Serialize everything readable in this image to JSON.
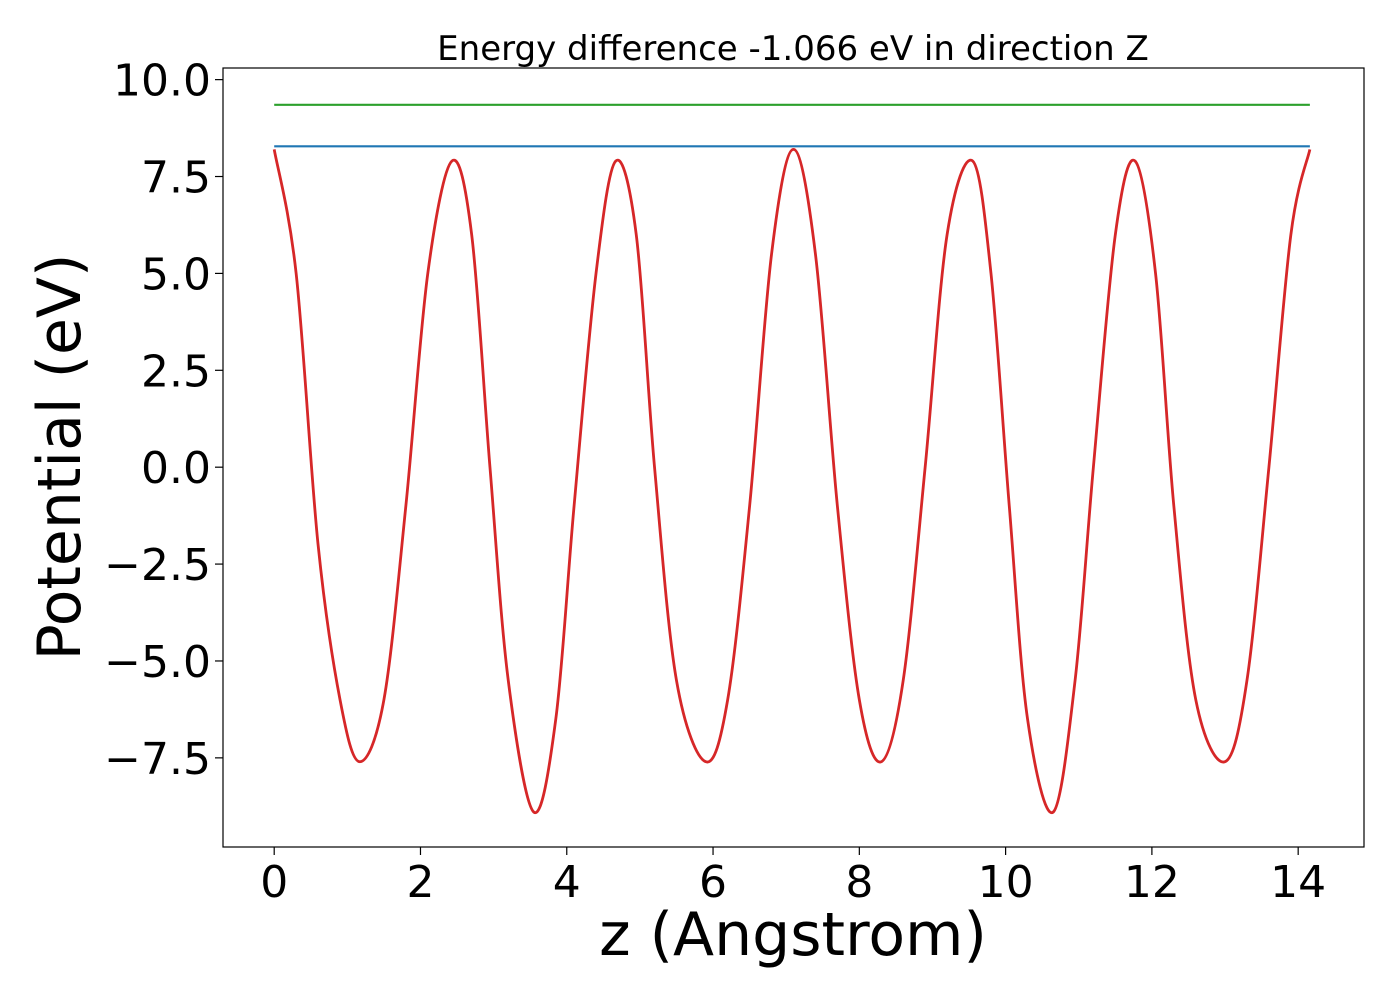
{
  "chart_data": {
    "type": "line",
    "title": "Energy difference -1.066 eV in direction Z",
    "xlabel": "z (Angstrom)",
    "ylabel": "Potential (eV)",
    "xlim": [
      -0.7,
      14.9
    ],
    "ylim": [
      -9.8,
      10.3
    ],
    "xticks": [
      0,
      2,
      4,
      6,
      8,
      10,
      12,
      14
    ],
    "xtick_labels": [
      "0",
      "2",
      "4",
      "6",
      "8",
      "10",
      "12",
      "14"
    ],
    "yticks": [
      10.0,
      7.5,
      5.0,
      2.5,
      0.0,
      -2.5,
      -5.0,
      -7.5
    ],
    "ytick_labels": [
      "10.0",
      "7.5",
      "5.0",
      "2.5",
      "0.0",
      "−2.5",
      "−5.0",
      "−7.5"
    ],
    "grid": false,
    "legend": "none",
    "series": [
      {
        "color": "#d62728",
        "x": [
          0.0,
          0.3,
          0.6,
          0.9,
          1.17,
          1.5,
          1.8,
          2.1,
          2.43,
          2.7,
          2.95,
          3.2,
          3.55,
          3.85,
          4.1,
          4.4,
          4.67,
          4.95,
          5.2,
          5.5,
          5.9,
          6.2,
          6.5,
          6.8,
          7.1,
          7.4,
          7.7,
          8.0,
          8.3,
          8.6,
          8.9,
          9.2,
          9.55,
          9.8,
          10.05,
          10.3,
          10.65,
          10.95,
          11.2,
          11.5,
          11.77,
          12.05,
          12.3,
          12.6,
          13.0,
          13.3,
          13.6,
          13.9,
          14.16
        ],
        "y": [
          8.2,
          5.0,
          -2.0,
          -6.0,
          -7.6,
          -6.0,
          -1.0,
          5.0,
          7.9,
          6.0,
          0.0,
          -5.5,
          -8.9,
          -6.5,
          -1.0,
          5.0,
          7.9,
          6.0,
          0.0,
          -5.5,
          -7.6,
          -6.0,
          -1.0,
          5.5,
          8.2,
          5.5,
          -1.0,
          -6.0,
          -7.6,
          -5.5,
          0.0,
          6.0,
          7.9,
          5.0,
          -1.0,
          -6.5,
          -8.9,
          -5.5,
          0.0,
          6.0,
          7.9,
          5.0,
          -1.0,
          -6.0,
          -7.6,
          -5.5,
          0.0,
          6.0,
          8.2
        ]
      },
      {
        "color": "#1f77b4",
        "x": [
          0.0,
          14.16
        ],
        "y": [
          8.28,
          8.28
        ]
      },
      {
        "color": "#2ca02c",
        "x": [
          0.0,
          14.16
        ],
        "y": [
          9.35,
          9.35
        ]
      }
    ]
  }
}
